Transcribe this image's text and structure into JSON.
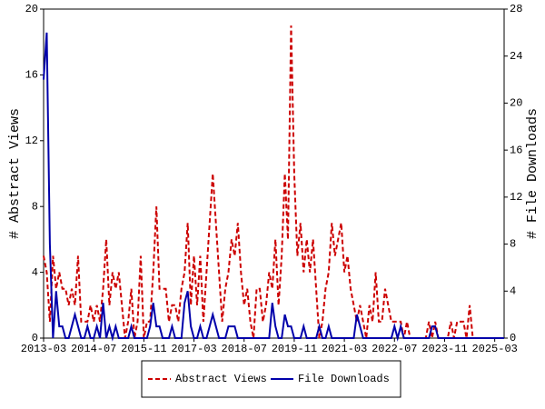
{
  "chart_data": {
    "type": "line",
    "ylabel": "# Abstract Views",
    "y2label": "# File Downloads",
    "x": [
      "2013-03",
      "2013-04",
      "2013-05",
      "2013-06",
      "2013-07",
      "2013-08",
      "2013-09",
      "2013-10",
      "2013-11",
      "2013-12",
      "2014-01",
      "2014-02",
      "2014-03",
      "2014-04",
      "2014-05",
      "2014-06",
      "2014-07",
      "2014-08",
      "2014-09",
      "2014-10",
      "2014-11",
      "2014-12",
      "2015-01",
      "2015-02",
      "2015-03",
      "2015-04",
      "2015-05",
      "2015-06",
      "2015-07",
      "2015-08",
      "2015-09",
      "2015-10",
      "2015-11",
      "2015-12",
      "2016-01",
      "2016-02",
      "2016-03",
      "2016-04",
      "2016-05",
      "2016-06",
      "2016-07",
      "2016-08",
      "2016-09",
      "2016-10",
      "2016-11",
      "2016-12",
      "2017-01",
      "2017-02",
      "2017-03",
      "2017-04",
      "2017-05",
      "2017-06",
      "2017-07",
      "2017-08",
      "2017-09",
      "2017-10",
      "2017-11",
      "2017-12",
      "2018-01",
      "2018-02",
      "2018-03",
      "2018-04",
      "2018-05",
      "2018-06",
      "2018-07",
      "2018-08",
      "2018-09",
      "2018-10",
      "2018-11",
      "2018-12",
      "2019-01",
      "2019-02",
      "2019-03",
      "2019-04",
      "2019-05",
      "2019-06",
      "2019-07",
      "2019-08",
      "2019-09",
      "2019-10",
      "2019-11",
      "2019-12",
      "2020-01",
      "2020-02",
      "2020-03",
      "2020-04",
      "2020-05",
      "2020-06",
      "2020-07",
      "2020-08",
      "2020-09",
      "2020-10",
      "2020-11",
      "2020-12",
      "2021-01",
      "2021-02",
      "2021-03",
      "2021-04",
      "2021-05",
      "2021-06",
      "2021-07",
      "2021-08",
      "2021-09",
      "2021-10",
      "2021-11",
      "2021-12",
      "2022-01",
      "2022-02",
      "2022-03",
      "2022-04",
      "2022-05",
      "2022-06",
      "2022-07",
      "2022-08",
      "2022-09",
      "2022-10",
      "2022-11",
      "2022-12",
      "2023-01",
      "2023-02",
      "2023-03",
      "2023-04",
      "2023-05",
      "2023-06",
      "2023-07",
      "2023-08",
      "2023-09",
      "2023-10",
      "2023-11",
      "2023-12",
      "2024-01",
      "2024-02",
      "2024-03",
      "2024-04",
      "2024-05",
      "2024-06",
      "2024-07",
      "2024-08",
      "2024-09",
      "2024-10",
      "2024-11",
      "2024-12",
      "2025-01",
      "2025-02",
      "2025-03",
      "2025-04",
      "2025-05",
      "2025-06"
    ],
    "xticks": [
      "2013-03",
      "2014-07",
      "2015-11",
      "2017-03",
      "2018-07",
      "2019-11",
      "2021-03",
      "2022-07",
      "2023-11",
      "2025-03"
    ],
    "ylim": [
      0,
      20
    ],
    "yticks": [
      0,
      4,
      8,
      12,
      16,
      20
    ],
    "y2lim": [
      0,
      28
    ],
    "y2ticks": [
      0,
      4,
      8,
      12,
      16,
      20,
      24,
      28
    ],
    "legend": "bottom",
    "series": [
      {
        "name": "Abstract Views",
        "color": "#cc0000",
        "dash": true,
        "values": [
          5,
          4,
          1,
          5,
          3,
          4,
          3,
          3,
          2,
          3,
          2,
          5,
          1,
          1,
          1,
          2,
          1,
          2,
          1,
          3,
          6,
          2,
          4,
          3,
          4,
          2,
          0,
          1,
          3,
          0,
          1,
          5,
          0,
          1,
          1,
          4,
          8,
          3,
          3,
          3,
          1,
          2,
          2,
          1,
          3,
          4,
          7,
          2,
          5,
          2,
          5,
          1,
          4,
          7,
          10,
          7,
          4,
          1,
          3,
          4,
          6,
          5,
          7,
          4,
          2,
          3,
          1,
          0,
          3,
          3,
          1,
          2,
          4,
          3,
          6,
          2,
          5,
          10,
          6,
          19,
          10,
          5,
          7,
          4,
          6,
          4,
          6,
          3,
          0,
          1,
          3,
          4,
          7,
          5,
          6,
          7,
          4,
          5,
          3,
          2,
          1,
          2,
          1,
          0,
          2,
          1,
          4,
          1,
          1,
          3,
          2,
          1,
          1,
          1,
          1,
          0,
          1,
          0,
          0,
          0,
          0,
          0,
          0,
          1,
          0,
          1,
          0,
          0,
          0,
          0,
          1,
          0,
          1,
          1,
          1,
          0,
          2,
          0,
          0,
          0,
          0,
          0,
          0,
          0,
          0,
          0,
          0,
          0
        ]
      },
      {
        "name": "File Downloads",
        "color": "#0000aa",
        "dash": false,
        "axis": "y2",
        "values": [
          22,
          26,
          8,
          0,
          4,
          1,
          1,
          0,
          0,
          1,
          2,
          1,
          0,
          0,
          1,
          0,
          0,
          1,
          0,
          3,
          0,
          1,
          0,
          1,
          0,
          0,
          0,
          0,
          1,
          0,
          0,
          0,
          0,
          0,
          1,
          3,
          1,
          1,
          0,
          0,
          0,
          1,
          0,
          0,
          0,
          3,
          4,
          1,
          0,
          0,
          1,
          0,
          0,
          1,
          2,
          1,
          0,
          0,
          0,
          1,
          1,
          1,
          0,
          0,
          0,
          0,
          0,
          0,
          0,
          0,
          0,
          0,
          0,
          3,
          1,
          0,
          0,
          2,
          1,
          1,
          0,
          0,
          0,
          1,
          0,
          0,
          0,
          0,
          1,
          0,
          0,
          1,
          0,
          0,
          0,
          0,
          0,
          0,
          0,
          0,
          2,
          1,
          0,
          0,
          0,
          0,
          0,
          0,
          0,
          0,
          0,
          0,
          1,
          0,
          1,
          0,
          0,
          0,
          0,
          0,
          0,
          0,
          0,
          0,
          1,
          1,
          0,
          0,
          0,
          0,
          0,
          0,
          0,
          0,
          0,
          0,
          0,
          0,
          0,
          0,
          0,
          0,
          0,
          0,
          0,
          0,
          0,
          0
        ]
      }
    ]
  }
}
